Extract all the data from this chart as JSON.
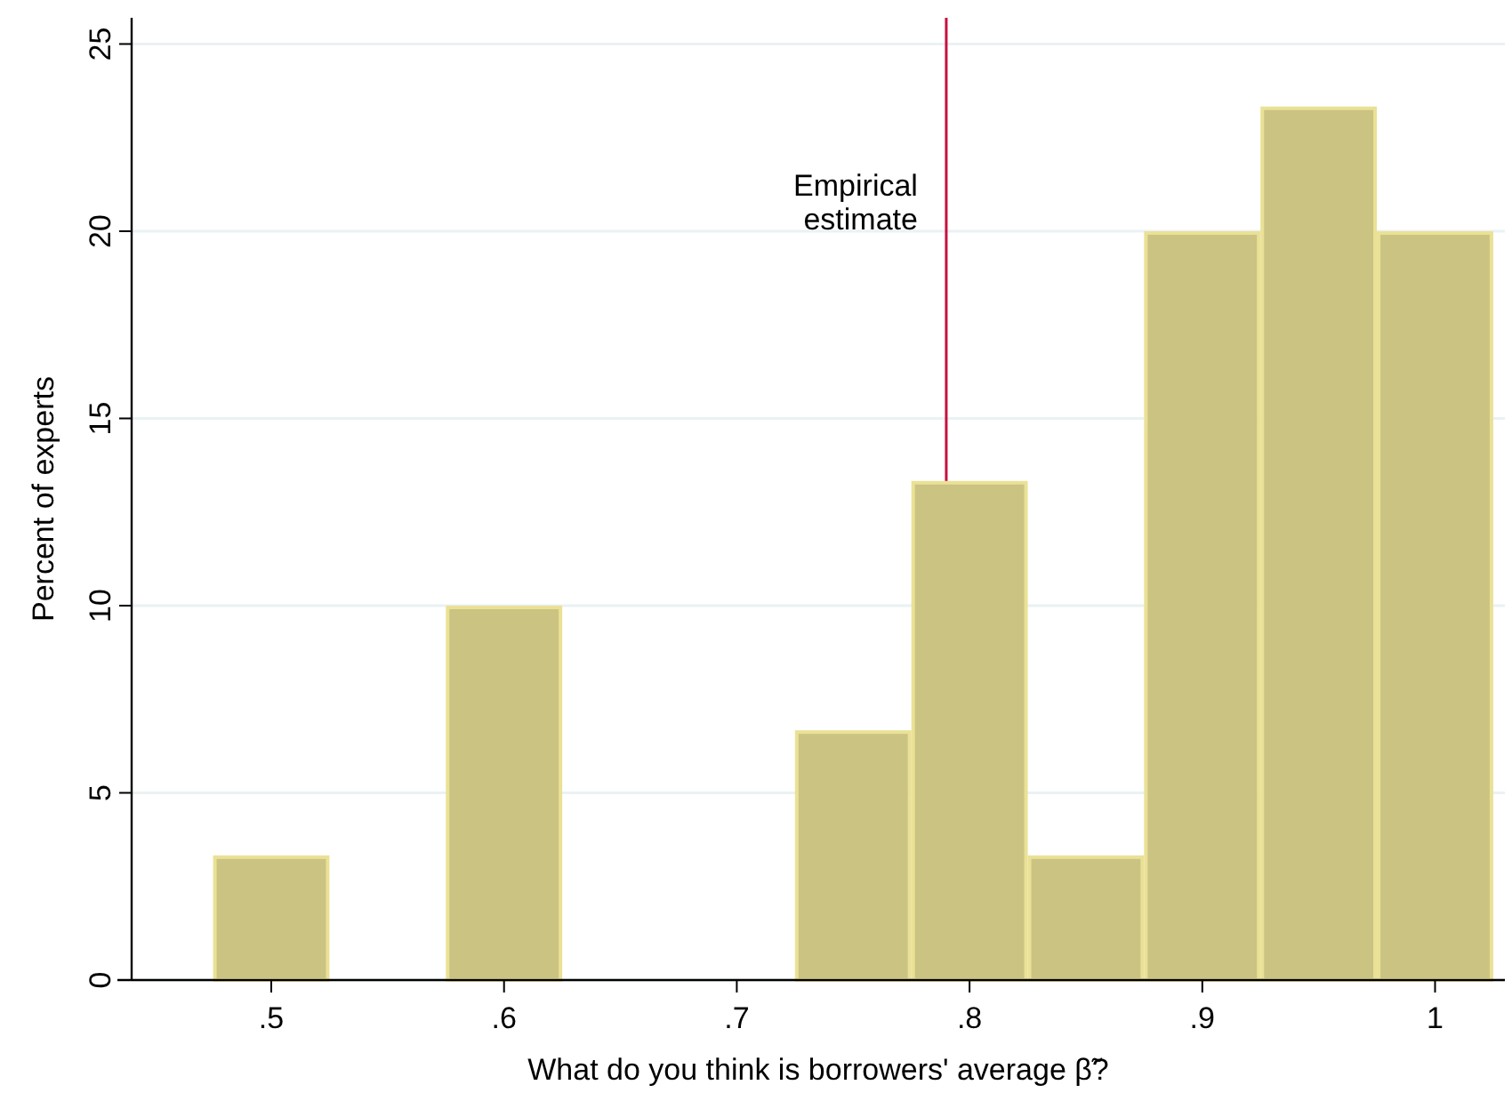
{
  "chart_data": {
    "type": "histogram",
    "xlabel": "What do you think is borrowers' average β̃?",
    "ylabel": "Percent of experts",
    "bins": [
      0.475,
      0.525,
      0.575,
      0.625,
      0.675,
      0.725,
      0.775,
      0.825,
      0.875,
      0.925,
      0.975,
      1.025
    ],
    "values": [
      3.33,
      0,
      10,
      0,
      0,
      6.67,
      13.33,
      3.33,
      20,
      23.33,
      20
    ],
    "color": "#cbc382",
    "xlim": [
      0.44,
      1.03
    ],
    "ylim": [
      0,
      25.7
    ],
    "xticks": [
      {
        "value": 0.5,
        "label": ".5"
      },
      {
        "value": 0.6,
        "label": ".6"
      },
      {
        "value": 0.7,
        "label": ".7"
      },
      {
        "value": 0.8,
        "label": ".8"
      },
      {
        "value": 0.9,
        "label": ".9"
      },
      1
    ],
    "yticks": [
      0,
      5,
      10,
      15,
      20,
      25
    ],
    "grid": "y",
    "ref_lines": [
      {
        "axis": "x",
        "value": 0.79,
        "label": "Empirical estimate",
        "color": "#c8103e"
      }
    ]
  }
}
